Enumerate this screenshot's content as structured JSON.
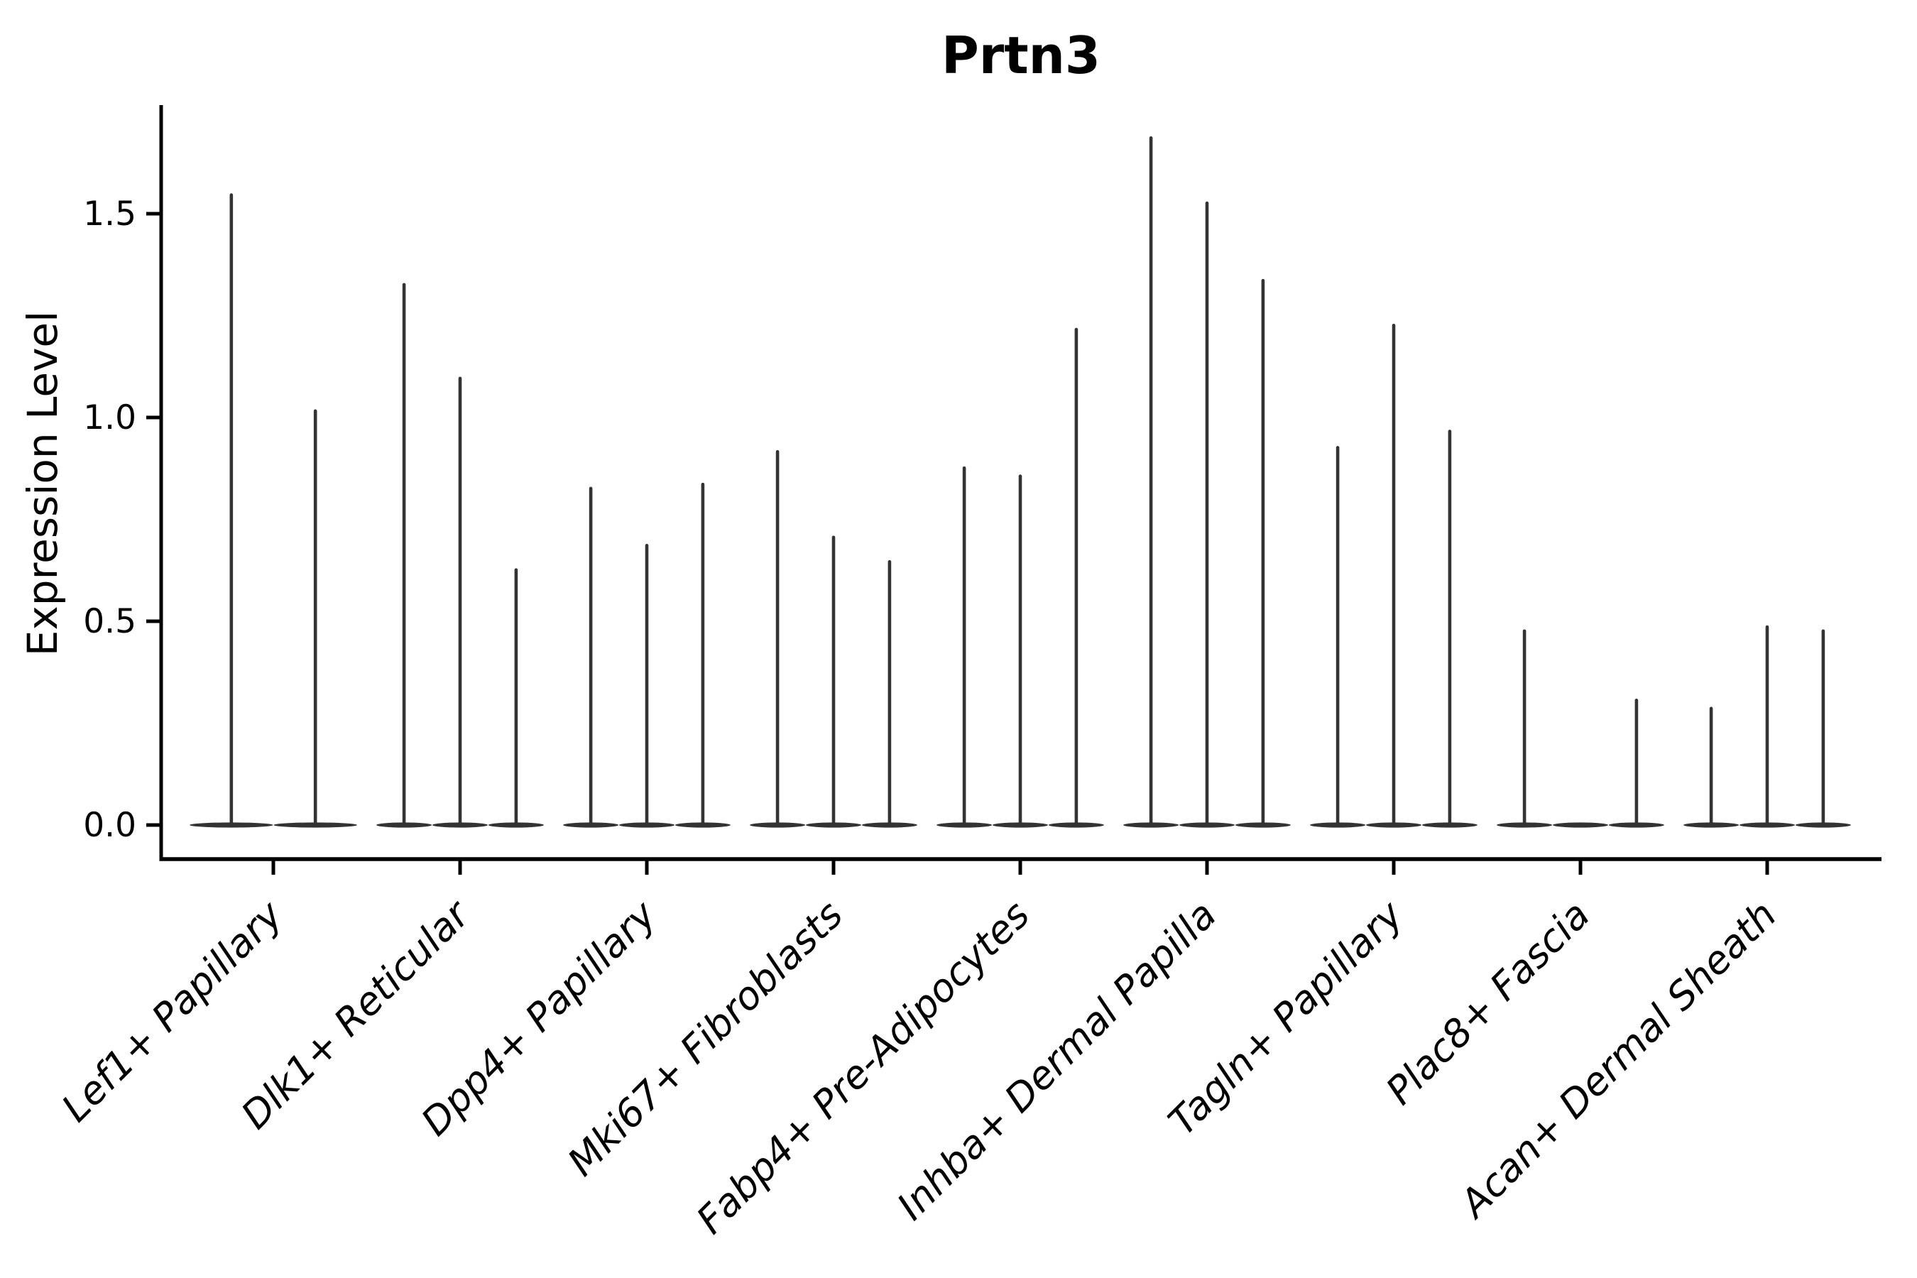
{
  "title": "Prtn3",
  "y_axis": {
    "label": "Expression Level",
    "tick_labels": [
      "0.0",
      "0.5",
      "1.0",
      "1.5"
    ],
    "tick_values": [
      0.0,
      0.5,
      1.0,
      1.5
    ]
  },
  "x_axis": {
    "categories": [
      "Lef1+ Papillary",
      "Dlk1+ Reticular",
      "Dpp4+ Papillary",
      "Mki67+ Fibroblasts",
      "Fabp4+ Pre-Adipocytes",
      "Inhba+ Dermal Papilla",
      "Tagln+ Papillary",
      "Plac8+ Fascia",
      "Acan+ Dermal Sheath"
    ]
  },
  "chart_data": {
    "type": "violin",
    "title": "Prtn3",
    "xlabel": "",
    "ylabel": "Expression Level",
    "ylim": [
      -0.08,
      1.78
    ],
    "yticks": [
      0.0,
      0.5,
      1.0,
      1.5
    ],
    "grid": false,
    "legend": "none",
    "description": "Sparse single-cell gene expression violin plot. Each cluster on the x-axis has up to 3 dodged violins; nearly all density sits at expression 0 (flat base) with a thin spike rising to the maximum expression value. The first cluster has only 2 (wider) violins; the middle violin of Plac8+ Fascia is entirely at 0 (no spike).",
    "categories": [
      "Lef1+ Papillary",
      "Dlk1+ Reticular",
      "Dpp4+ Papillary",
      "Mki67+ Fibroblasts",
      "Fabp4+ Pre-Adipocytes",
      "Inhba+ Dermal Papilla",
      "Tagln+ Papillary",
      "Plac8+ Fascia",
      "Acan+ Dermal Sheath"
    ],
    "groups": [
      {
        "category": "Lef1+ Papillary",
        "violins": [
          {
            "offset": -0.225,
            "width": 0.45,
            "max": 1.55
          },
          {
            "offset": 0.225,
            "width": 0.45,
            "max": 1.02
          }
        ]
      },
      {
        "category": "Dlk1+ Reticular",
        "violins": [
          {
            "offset": -0.3,
            "width": 0.3,
            "max": 1.33
          },
          {
            "offset": 0,
            "width": 0.3,
            "max": 1.1
          },
          {
            "offset": 0.3,
            "width": 0.3,
            "max": 0.63
          }
        ]
      },
      {
        "category": "Dpp4+ Papillary",
        "violins": [
          {
            "offset": -0.3,
            "width": 0.3,
            "max": 0.83
          },
          {
            "offset": 0,
            "width": 0.3,
            "max": 0.69
          },
          {
            "offset": 0.3,
            "width": 0.3,
            "max": 0.84
          }
        ]
      },
      {
        "category": "Mki67+ Fibroblasts",
        "violins": [
          {
            "offset": -0.3,
            "width": 0.3,
            "max": 0.92
          },
          {
            "offset": 0,
            "width": 0.3,
            "max": 0.71
          },
          {
            "offset": 0.3,
            "width": 0.3,
            "max": 0.65
          }
        ]
      },
      {
        "category": "Fabp4+ Pre-Adipocytes",
        "violins": [
          {
            "offset": -0.3,
            "width": 0.3,
            "max": 0.88
          },
          {
            "offset": 0,
            "width": 0.3,
            "max": 0.86
          },
          {
            "offset": 0.3,
            "width": 0.3,
            "max": 1.22
          }
        ]
      },
      {
        "category": "Inhba+ Dermal Papilla",
        "violins": [
          {
            "offset": -0.3,
            "width": 0.3,
            "max": 1.69
          },
          {
            "offset": 0,
            "width": 0.3,
            "max": 1.53
          },
          {
            "offset": 0.3,
            "width": 0.3,
            "max": 1.34
          }
        ]
      },
      {
        "category": "Tagln+ Papillary",
        "violins": [
          {
            "offset": -0.3,
            "width": 0.3,
            "max": 0.93
          },
          {
            "offset": 0,
            "width": 0.3,
            "max": 1.23
          },
          {
            "offset": 0.3,
            "width": 0.3,
            "max": 0.97
          }
        ]
      },
      {
        "category": "Plac8+ Fascia",
        "violins": [
          {
            "offset": -0.3,
            "width": 0.3,
            "max": 0.48
          },
          {
            "offset": 0,
            "width": 0.3,
            "max": 0.0
          },
          {
            "offset": 0.3,
            "width": 0.3,
            "max": 0.31
          }
        ]
      },
      {
        "category": "Acan+ Dermal Sheath",
        "violins": [
          {
            "offset": -0.3,
            "width": 0.3,
            "max": 0.29
          },
          {
            "offset": 0,
            "width": 0.3,
            "max": 0.49
          },
          {
            "offset": 0.3,
            "width": 0.3,
            "max": 0.48
          }
        ]
      }
    ],
    "colors": {
      "violin": "#333333",
      "axis": "#000000",
      "text": "#000000"
    }
  }
}
